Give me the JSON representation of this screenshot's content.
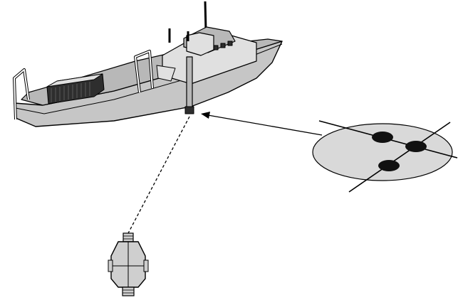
{
  "diagram": {
    "background": "#ffffff",
    "colors": {
      "stroke": "#000000",
      "hull": "#c6c6c6",
      "deck": "#b8b8b8",
      "deck_light": "#e0e0e0",
      "dark_panel": "#2e2e2e",
      "disc_fill": "#d9d9d9",
      "transducer": "#111111",
      "towfish": "#cfcfcf"
    },
    "components": {
      "vessel": "survey-boat",
      "transducer_pole": "hull-mounted-pole",
      "acoustic_link": "dashed-line",
      "underwater_unit": "towed-instrument",
      "array_inset": "transducer-array-disc",
      "callout": "arrow-to-pole"
    }
  }
}
